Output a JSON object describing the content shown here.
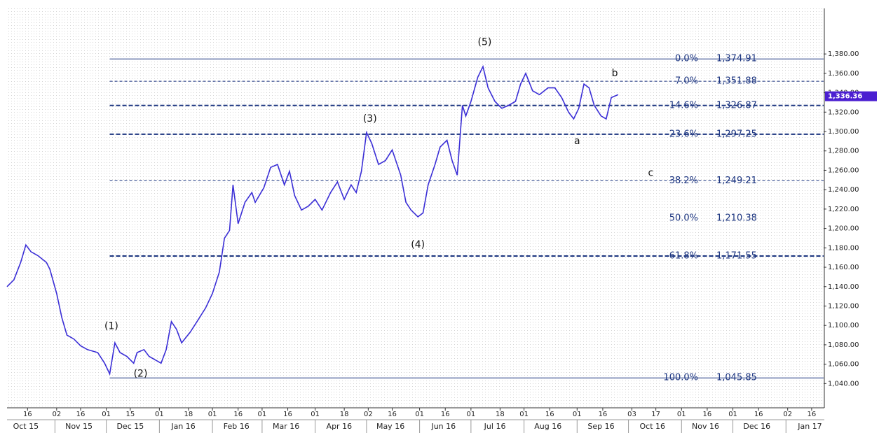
{
  "chart_data": {
    "type": "line",
    "xlim": [
      "2015-10-04",
      "2017-01-23"
    ],
    "ylim": [
      1015,
      1427
    ],
    "yticks": [
      {
        "value": 1040,
        "label": "1,040.00"
      },
      {
        "value": 1060,
        "label": "1,060.00"
      },
      {
        "value": 1080,
        "label": "1,080.00"
      },
      {
        "value": 1100,
        "label": "1,100.00"
      },
      {
        "value": 1120,
        "label": "1,120.00"
      },
      {
        "value": 1140,
        "label": "1,140.00"
      },
      {
        "value": 1160,
        "label": "1,160.00"
      },
      {
        "value": 1180,
        "label": "1,180.00"
      },
      {
        "value": 1200,
        "label": "1,200.00"
      },
      {
        "value": 1220,
        "label": "1,220.00"
      },
      {
        "value": 1240,
        "label": "1,240.00"
      },
      {
        "value": 1260,
        "label": "1,260.00"
      },
      {
        "value": 1280,
        "label": "1,280.00"
      },
      {
        "value": 1300,
        "label": "1,300.00"
      },
      {
        "value": 1320,
        "label": "1,320.00"
      },
      {
        "value": 1340,
        "label": "1,340.00"
      },
      {
        "value": 1360,
        "label": "1,360.00"
      },
      {
        "value": 1380,
        "label": "1,380.00"
      }
    ],
    "xticks": [
      {
        "value": "2015-10-16",
        "label": "16"
      },
      {
        "value": "2015-11-02",
        "label": "02"
      },
      {
        "value": "2015-11-16",
        "label": "16"
      },
      {
        "value": "2015-12-01",
        "label": "01"
      },
      {
        "value": "2015-12-15",
        "label": "15"
      },
      {
        "value": "2016-01-01",
        "label": "01"
      },
      {
        "value": "2016-01-18",
        "label": "18"
      },
      {
        "value": "2016-02-01",
        "label": "01"
      },
      {
        "value": "2016-02-16",
        "label": "16"
      },
      {
        "value": "2016-03-01",
        "label": "01"
      },
      {
        "value": "2016-03-16",
        "label": "16"
      },
      {
        "value": "2016-04-01",
        "label": "01"
      },
      {
        "value": "2016-04-18",
        "label": "18"
      },
      {
        "value": "2016-05-02",
        "label": "02"
      },
      {
        "value": "2016-05-16",
        "label": "16"
      },
      {
        "value": "2016-06-01",
        "label": "01"
      },
      {
        "value": "2016-06-16",
        "label": "16"
      },
      {
        "value": "2016-07-01",
        "label": "01"
      },
      {
        "value": "2016-07-18",
        "label": "18"
      },
      {
        "value": "2016-08-01",
        "label": "01"
      },
      {
        "value": "2016-08-16",
        "label": "16"
      },
      {
        "value": "2016-09-01",
        "label": "01"
      },
      {
        "value": "2016-09-16",
        "label": "16"
      },
      {
        "value": "2016-10-03",
        "label": "03"
      },
      {
        "value": "2016-10-17",
        "label": "17"
      },
      {
        "value": "2016-11-01",
        "label": "01"
      },
      {
        "value": "2016-11-16",
        "label": "16"
      },
      {
        "value": "2016-12-01",
        "label": "01"
      },
      {
        "value": "2016-12-16",
        "label": "16"
      },
      {
        "value": "2017-01-02",
        "label": "02"
      },
      {
        "value": "2017-01-16",
        "label": "16"
      }
    ],
    "month_labels": [
      {
        "value": "2015-10-01",
        "label": "Oct 15"
      },
      {
        "value": "2015-11-01",
        "label": "Nov 15"
      },
      {
        "value": "2015-12-01",
        "label": "Dec 15"
      },
      {
        "value": "2016-01-01",
        "label": "Jan 16"
      },
      {
        "value": "2016-02-01",
        "label": "Feb 16"
      },
      {
        "value": "2016-03-01",
        "label": "Mar 16"
      },
      {
        "value": "2016-04-01",
        "label": "Apr 16"
      },
      {
        "value": "2016-05-01",
        "label": "May 16"
      },
      {
        "value": "2016-06-01",
        "label": "Jun 16"
      },
      {
        "value": "2016-07-01",
        "label": "Jul 16"
      },
      {
        "value": "2016-08-01",
        "label": "Aug 16"
      },
      {
        "value": "2016-09-01",
        "label": "Sep 16"
      },
      {
        "value": "2016-10-01",
        "label": "Oct 16"
      },
      {
        "value": "2016-11-01",
        "label": "Nov 16"
      },
      {
        "value": "2016-12-01",
        "label": "Dec 16"
      },
      {
        "value": "2017-01-01",
        "label": "Jan 17"
      }
    ],
    "series": [
      {
        "color": "#3a2ed6",
        "x": [
          "2015-10-04",
          "2015-10-08",
          "2015-10-12",
          "2015-10-15",
          "2015-10-18",
          "2015-10-22",
          "2015-10-27",
          "2015-10-29",
          "2015-11-02",
          "2015-11-05",
          "2015-11-08",
          "2015-11-12",
          "2015-11-16",
          "2015-11-20",
          "2015-11-26",
          "2015-11-30",
          "2015-12-03",
          "2015-12-06",
          "2015-12-09",
          "2015-12-13",
          "2015-12-17",
          "2015-12-19",
          "2015-12-23",
          "2015-12-26",
          "2015-12-30",
          "2016-01-02",
          "2016-01-05",
          "2016-01-08",
          "2016-01-11",
          "2016-01-14",
          "2016-01-19",
          "2016-01-23",
          "2016-01-28",
          "2016-02-01",
          "2016-02-05",
          "2016-02-08",
          "2016-02-11",
          "2016-02-13",
          "2016-02-16",
          "2016-02-20",
          "2016-02-24",
          "2016-02-26",
          "2016-03-02",
          "2016-03-06",
          "2016-03-10",
          "2016-03-14",
          "2016-03-17",
          "2016-03-20",
          "2016-03-24",
          "2016-03-28",
          "2016-04-01",
          "2016-04-05",
          "2016-04-10",
          "2016-04-14",
          "2016-04-18",
          "2016-04-22",
          "2016-04-25",
          "2016-04-28",
          "2016-05-01",
          "2016-05-04",
          "2016-05-08",
          "2016-05-12",
          "2016-05-16",
          "2016-05-21",
          "2016-05-24",
          "2016-05-27",
          "2016-05-31",
          "2016-06-03",
          "2016-06-06",
          "2016-06-10",
          "2016-06-13",
          "2016-06-17",
          "2016-06-20",
          "2016-06-23",
          "2016-06-26",
          "2016-06-28",
          "2016-07-01",
          "2016-07-05",
          "2016-07-08",
          "2016-07-11",
          "2016-07-15",
          "2016-07-19",
          "2016-07-23",
          "2016-07-27",
          "2016-07-30",
          "2016-08-02",
          "2016-08-06",
          "2016-08-10",
          "2016-08-15",
          "2016-08-19",
          "2016-08-23",
          "2016-08-27",
          "2016-08-30",
          "2016-09-02",
          "2016-09-05",
          "2016-09-08",
          "2016-09-11",
          "2016-09-15",
          "2016-09-18",
          "2016-09-21",
          "2016-09-25"
        ],
        "values": [
          1140,
          1147,
          1165,
          1183,
          1176,
          1172,
          1165,
          1158,
          1133,
          1108,
          1090,
          1086,
          1079,
          1075,
          1072,
          1061,
          1050,
          1082,
          1072,
          1068,
          1061,
          1072,
          1075,
          1068,
          1064,
          1061,
          1075,
          1104,
          1096,
          1082,
          1093,
          1104,
          1118,
          1133,
          1155,
          1190,
          1198,
          1245,
          1205,
          1227,
          1237,
          1227,
          1242,
          1263,
          1266,
          1245,
          1259,
          1234,
          1219,
          1223,
          1230,
          1219,
          1237,
          1248,
          1230,
          1245,
          1237,
          1259,
          1299,
          1288,
          1266,
          1270,
          1281,
          1255,
          1227,
          1219,
          1212,
          1216,
          1245,
          1266,
          1284,
          1291,
          1270,
          1255,
          1327,
          1316,
          1331,
          1356,
          1367,
          1345,
          1331,
          1324,
          1327,
          1331,
          1349,
          1360,
          1342,
          1338,
          1345,
          1345,
          1335,
          1320,
          1313,
          1324,
          1349,
          1345,
          1327,
          1316,
          1313,
          1335,
          1338
        ]
      }
    ],
    "fib_start": "2015-12-03",
    "fib_levels": [
      {
        "label": "0.0%",
        "value": 1374.91,
        "value_label": "1,374.91",
        "line": "solid"
      },
      {
        "label": "7.0%",
        "value": 1351.88,
        "value_label": "1,351.88",
        "line": "dashed"
      },
      {
        "label": "14.6%",
        "value": 1326.87,
        "value_label": "1,326.87",
        "line": "bold-dashed"
      },
      {
        "label": "23.6%",
        "value": 1297.25,
        "value_label": "1,297.25",
        "line": "bold-dashed"
      },
      {
        "label": "38.2%",
        "value": 1249.21,
        "value_label": "1,249.21",
        "line": "dashed"
      },
      {
        "label": "50.0%",
        "value": 1210.38,
        "value_label": "1,210.38",
        "line": "none"
      },
      {
        "label": "61.8%",
        "value": 1171.55,
        "value_label": "1,171.55",
        "line": "bold-dashed"
      },
      {
        "label": "100.0%",
        "value": 1045.85,
        "value_label": "1,045.85",
        "line": "solid"
      }
    ],
    "fib_color": "#1c3580",
    "annotations": [
      {
        "text": "(1)",
        "x": "2015-12-04",
        "y": 1099
      },
      {
        "text": "(2)",
        "x": "2015-12-21",
        "y": 1050
      },
      {
        "text": "(3)",
        "x": "2016-05-03",
        "y": 1313
      },
      {
        "text": "(4)",
        "x": "2016-05-31",
        "y": 1183
      },
      {
        "text": "(5)",
        "x": "2016-07-09",
        "y": 1392
      },
      {
        "text": "a",
        "x": "2016-09-01",
        "y": 1290
      },
      {
        "text": "b",
        "x": "2016-09-23",
        "y": 1360
      },
      {
        "text": "c",
        "x": "2016-10-14",
        "y": 1257
      }
    ],
    "last_price": {
      "value": 1336.36,
      "label": "1,336.36",
      "color": "#4b1fd1"
    }
  }
}
